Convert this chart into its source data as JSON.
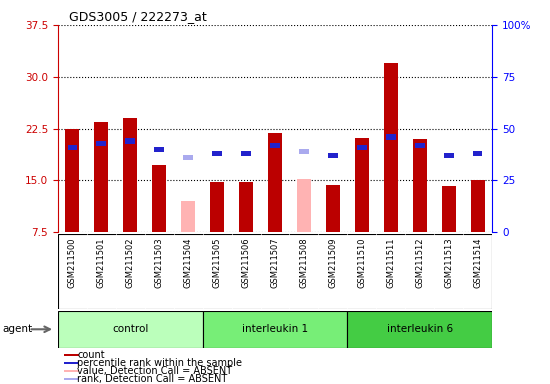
{
  "title": "GDS3005 / 222273_at",
  "samples": [
    "GSM211500",
    "GSM211501",
    "GSM211502",
    "GSM211503",
    "GSM211504",
    "GSM211505",
    "GSM211506",
    "GSM211507",
    "GSM211508",
    "GSM211509",
    "GSM211510",
    "GSM211511",
    "GSM211512",
    "GSM211513",
    "GSM211514"
  ],
  "count_values": [
    22.4,
    23.4,
    24.0,
    17.2,
    null,
    14.8,
    14.8,
    21.8,
    null,
    14.4,
    21.2,
    32.0,
    21.0,
    14.2,
    15.0
  ],
  "count_absent": [
    null,
    null,
    null,
    null,
    12.0,
    null,
    null,
    null,
    15.2,
    null,
    null,
    null,
    null,
    null,
    null
  ],
  "rank_values": [
    41,
    43,
    44,
    40,
    null,
    38,
    38,
    42,
    null,
    37,
    41,
    46,
    42,
    37,
    38
  ],
  "rank_absent": [
    null,
    null,
    null,
    null,
    36,
    null,
    null,
    null,
    39,
    null,
    null,
    null,
    null,
    null,
    null
  ],
  "left_ylim": [
    7.5,
    37.5
  ],
  "right_ylim": [
    0,
    100
  ],
  "left_yticks": [
    7.5,
    15.0,
    22.5,
    30.0,
    37.5
  ],
  "right_yticks": [
    0,
    25,
    50,
    75,
    100
  ],
  "groups": [
    {
      "label": "control",
      "start": 0,
      "end": 5,
      "color": "#bbffbb"
    },
    {
      "label": "interleukin 1",
      "start": 5,
      "end": 10,
      "color": "#77ee77"
    },
    {
      "label": "interleukin 6",
      "start": 10,
      "end": 15,
      "color": "#44cc44"
    }
  ],
  "bar_color_red": "#bb0000",
  "bar_color_pink": "#ffb3b3",
  "rank_color_blue": "#2222cc",
  "rank_color_lightblue": "#aaaaee",
  "bg_color": "#cccccc",
  "bar_width": 0.5,
  "agent_label": "agent"
}
